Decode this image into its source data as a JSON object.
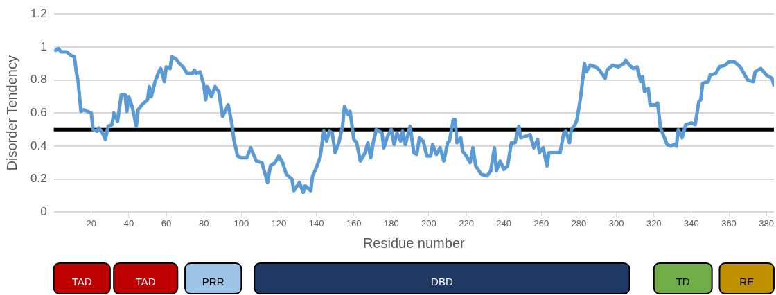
{
  "chart_data": [
    {
      "type": "line",
      "xlabel": "Residue number",
      "ylabel": "Disorder Tendency",
      "xlim": [
        0,
        384
      ],
      "xticks": [
        20,
        40,
        60,
        80,
        100,
        120,
        140,
        160,
        180,
        200,
        220,
        240,
        260,
        280,
        300,
        320,
        340,
        360,
        380
      ],
      "ylim": [
        0,
        1.2
      ],
      "yticks": [
        0,
        0.2,
        0.4,
        0.6,
        0.8,
        1,
        1.2
      ],
      "grid": "y",
      "series": [
        {
          "color": "#5b9bd5",
          "x": [
            1,
            2.4,
            4,
            7,
            9,
            11,
            12,
            13,
            14.5,
            16,
            18,
            20,
            21,
            23,
            24,
            26,
            27.5,
            29,
            31,
            32,
            34,
            36,
            38,
            39,
            40,
            42,
            44,
            45,
            47,
            50,
            51,
            52,
            54,
            56,
            57,
            59,
            60,
            62,
            63,
            65,
            67,
            69,
            71,
            74,
            75,
            76,
            78,
            80,
            81,
            82,
            84,
            86,
            88,
            90,
            93,
            95,
            96,
            98,
            100,
            103,
            105,
            108,
            111,
            114,
            115.5,
            118,
            120,
            122,
            124,
            127,
            128,
            131,
            133,
            134,
            137,
            138,
            140,
            142,
            144,
            145.5,
            147,
            148.5,
            150,
            152,
            154,
            155,
            157,
            158,
            160,
            161.5,
            163.5,
            166,
            167.5,
            169,
            170.5,
            172,
            175,
            176,
            178,
            180,
            181.5,
            183,
            185,
            186,
            187.5,
            190,
            192,
            193.5,
            195,
            197,
            199,
            201,
            202,
            204,
            206,
            208,
            210,
            211,
            213,
            214,
            215,
            217,
            218,
            220,
            222,
            223.5,
            225,
            228,
            231,
            233,
            235,
            236,
            238,
            240,
            242,
            244,
            246,
            248,
            249,
            252,
            254,
            256,
            258,
            259,
            261,
            263,
            264,
            267,
            270,
            272,
            273,
            275,
            276,
            278,
            279,
            281,
            282,
            283,
            284,
            286,
            289,
            291,
            294,
            295,
            298,
            301,
            304,
            305,
            307,
            309,
            311,
            313,
            314,
            315,
            317,
            318,
            321,
            322,
            323.5,
            326,
            327,
            329,
            331,
            332,
            333,
            335,
            337,
            340,
            342,
            344,
            345,
            346,
            349,
            350,
            353,
            355,
            358,
            360,
            363,
            366,
            368,
            370,
            373,
            374,
            377,
            380,
            383,
            384
          ],
          "values": [
            0.98,
            0.99,
            0.97,
            0.97,
            0.95,
            0.94,
            0.85,
            0.79,
            0.61,
            0.62,
            0.61,
            0.6,
            0.5,
            0.49,
            0.51,
            0.48,
            0.44,
            0.52,
            0.53,
            0.6,
            0.55,
            0.71,
            0.71,
            0.61,
            0.7,
            0.63,
            0.52,
            0.62,
            0.65,
            0.68,
            0.76,
            0.7,
            0.79,
            0.85,
            0.87,
            0.79,
            0.88,
            0.87,
            0.94,
            0.93,
            0.9,
            0.88,
            0.84,
            0.84,
            0.86,
            0.84,
            0.85,
            0.77,
            0.68,
            0.76,
            0.7,
            0.76,
            0.73,
            0.58,
            0.65,
            0.53,
            0.44,
            0.34,
            0.33,
            0.33,
            0.39,
            0.31,
            0.3,
            0.18,
            0.28,
            0.3,
            0.34,
            0.3,
            0.23,
            0.2,
            0.13,
            0.18,
            0.12,
            0.16,
            0.13,
            0.22,
            0.27,
            0.33,
            0.49,
            0.43,
            0.49,
            0.48,
            0.36,
            0.42,
            0.52,
            0.64,
            0.59,
            0.61,
            0.44,
            0.42,
            0.31,
            0.36,
            0.42,
            0.33,
            0.43,
            0.5,
            0.48,
            0.39,
            0.46,
            0.5,
            0.41,
            0.48,
            0.43,
            0.49,
            0.41,
            0.52,
            0.36,
            0.35,
            0.45,
            0.43,
            0.34,
            0.34,
            0.41,
            0.35,
            0.39,
            0.31,
            0.42,
            0.43,
            0.56,
            0.56,
            0.42,
            0.45,
            0.37,
            0.34,
            0.3,
            0.39,
            0.28,
            0.23,
            0.22,
            0.25,
            0.39,
            0.25,
            0.31,
            0.26,
            0.28,
            0.42,
            0.42,
            0.52,
            0.45,
            0.46,
            0.47,
            0.39,
            0.44,
            0.36,
            0.39,
            0.28,
            0.36,
            0.36,
            0.36,
            0.48,
            0.49,
            0.42,
            0.5,
            0.53,
            0.56,
            0.7,
            0.8,
            0.9,
            0.85,
            0.89,
            0.88,
            0.86,
            0.81,
            0.86,
            0.89,
            0.88,
            0.9,
            0.92,
            0.89,
            0.87,
            0.88,
            0.79,
            0.82,
            0.73,
            0.75,
            0.65,
            0.65,
            0.66,
            0.51,
            0.44,
            0.41,
            0.4,
            0.41,
            0.4,
            0.5,
            0.45,
            0.53,
            0.54,
            0.53,
            0.67,
            0.68,
            0.78,
            0.79,
            0.83,
            0.84,
            0.88,
            0.89,
            0.91,
            0.91,
            0.88,
            0.84,
            0.8,
            0.79,
            0.85,
            0.87,
            0.83,
            0.81,
            0.77
          ]
        }
      ],
      "ref_lines": [
        {
          "axis": "y",
          "value": 0.5,
          "color": "#000000"
        }
      ]
    },
    {
      "type": "bar",
      "orientation": "horizontal",
      "categories": [
        null
      ],
      "xlim": [
        0,
        384
      ],
      "tick_labels": false,
      "series": [
        {
          "color": "#c00000",
          "base": [
            0
          ],
          "values": [
            30
          ],
          "value_labels": [
            "TAD"
          ]
        },
        {
          "color": "#c00000",
          "base": [
            32
          ],
          "values": [
            34
          ],
          "value_labels": [
            "TAD"
          ]
        },
        {
          "color": "#9dc3e6",
          "base": [
            70
          ],
          "values": [
            30
          ],
          "value_labels": [
            "PRR"
          ]
        },
        {
          "color": "#203864",
          "base": [
            107
          ],
          "values": [
            200
          ],
          "value_labels": [
            "DBD"
          ]
        },
        {
          "color": "#70ad47",
          "base": [
            320
          ],
          "values": [
            31
          ],
          "value_labels": [
            "TD"
          ]
        },
        {
          "color": "#bf9000",
          "base": [
            355
          ],
          "values": [
            29
          ],
          "value_labels": [
            "RE"
          ]
        }
      ]
    }
  ]
}
